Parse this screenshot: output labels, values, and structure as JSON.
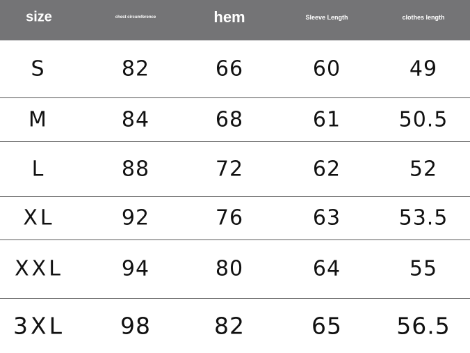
{
  "table": {
    "header": [
      "size",
      "chest circumference",
      "hem",
      "Sleeve Length",
      "clothes length"
    ],
    "rows": [
      [
        "S",
        82,
        66,
        60,
        49
      ],
      [
        "M",
        84,
        68,
        61,
        50.5
      ],
      [
        "L",
        88,
        72,
        62,
        52
      ],
      [
        "XL",
        92,
        76,
        63,
        53.5
      ],
      [
        "XXL",
        94,
        80,
        64,
        55
      ],
      [
        "3XL",
        98,
        82,
        65,
        56.5
      ]
    ]
  }
}
